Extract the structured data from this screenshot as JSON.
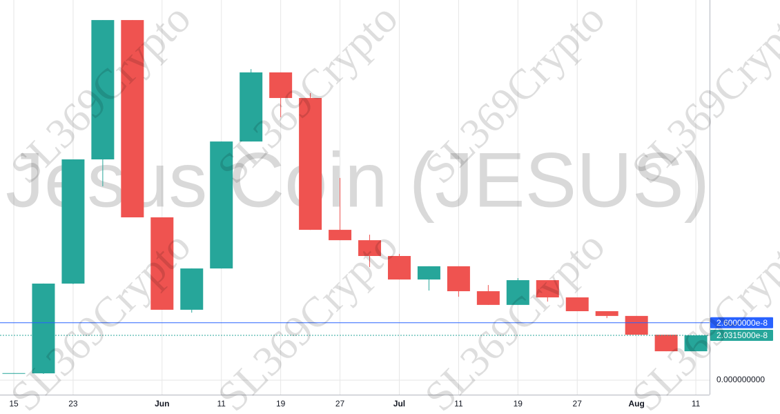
{
  "chart_data": {
    "type": "candlestick",
    "title": "Jesus Coin (JESUS)",
    "watermark": "SL369Crypto",
    "categories": [
      "15",
      null,
      "23",
      null,
      null,
      "Jun",
      null,
      "11",
      null,
      "19",
      null,
      "27",
      null,
      "Jul",
      null,
      "11",
      null,
      "19",
      null,
      "27",
      null,
      "Aug",
      null,
      "11"
    ],
    "bold_categories": [
      "Jun",
      "Jul",
      "Aug"
    ],
    "open": [
      3e-09,
      3.1e-09,
      4.375e-08,
      1e-07,
      1.631e-07,
      7.375e-08,
      3.19e-08,
      5.06e-08,
      1.081e-07,
      1.394e-07,
      1.278e-07,
      6.81e-08,
      6.34e-08,
      5.625e-08,
      4.56e-08,
      5.16e-08,
      4.03e-08,
      3.41e-08,
      4.53e-08,
      3.75e-08,
      3.125e-08,
      2.91e-08,
      2.06e-08,
      1.31e-08
    ],
    "high": [
      3.2e-09,
      4.38e-08,
      1e-07,
      1.631e-07,
      1.631e-07,
      7.375e-08,
      5.06e-08,
      1.081e-07,
      1.409e-07,
      1.394e-07,
      1.3e-07,
      9.16e-08,
      6.59e-08,
      5.72e-08,
      5.16e-08,
      5.16e-08,
      4.31e-08,
      4.625e-08,
      4.53e-08,
      3.75e-08,
      3.125e-08,
      2.91e-08,
      2.06e-08,
      2.0315e-08
    ],
    "low": [
      3e-09,
      2.8e-09,
      4.35e-08,
      8.78e-08,
      7.375e-08,
      3.19e-08,
      3.06e-08,
      5.06e-08,
      1.081e-07,
      1.191e-07,
      6.81e-08,
      6.34e-08,
      5.125e-08,
      4.56e-08,
      4.06e-08,
      3.78e-08,
      3.41e-08,
      3.41e-08,
      3.56e-08,
      3.125e-08,
      2.81e-08,
      2.06e-08,
      1.31e-08,
      1.31e-08
    ],
    "close": [
      3.2e-09,
      4.375e-08,
      1e-07,
      1.631e-07,
      7.375e-08,
      3.19e-08,
      5.06e-08,
      1.081e-07,
      1.394e-07,
      1.278e-07,
      6.81e-08,
      6.34e-08,
      5.625e-08,
      4.56e-08,
      5.16e-08,
      4.03e-08,
      3.41e-08,
      4.53e-08,
      3.75e-08,
      3.125e-08,
      2.91e-08,
      2.06e-08,
      1.31e-08,
      2.0315e-08
    ],
    "up_color": "#26a69a",
    "down_color": "#ef5350",
    "ylim": [
      -6.5625e-09,
      1.721875e-07
    ],
    "yticks": [
      {
        "value": 0,
        "label": "0.000000000"
      }
    ],
    "grid": true,
    "price_lines": [
      {
        "value": 2.6e-08,
        "label": "2.6000000e-8",
        "color": "#2962ff",
        "style": "solid"
      },
      {
        "value": 2.0315e-08,
        "label": "2.0315000e-8",
        "color": "#26a69a",
        "style": "dotted"
      }
    ]
  }
}
